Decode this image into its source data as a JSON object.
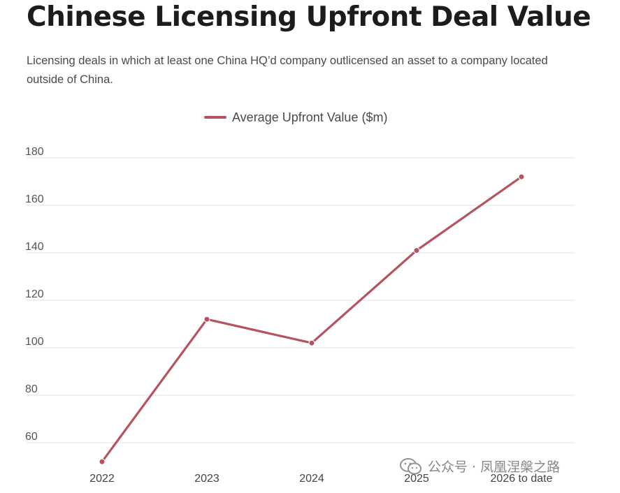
{
  "title": "Chinese Licensing Upfront Deal Value",
  "subtitle": "Licensing deals in which at least one China HQ’d company outlicensed an asset to a company located outside of China.",
  "watermark": "公众号 · 凤凰涅槃之路",
  "colors": {
    "series": "#b5535f",
    "grid": "#e3e3e3"
  },
  "chart_data": {
    "type": "line",
    "title": "Chinese Licensing Upfront Deal Value",
    "xlabel": "",
    "ylabel": "",
    "categories": [
      "2022",
      "2023",
      "2024",
      "2025",
      "2026 to date"
    ],
    "series": [
      {
        "name": "Average Upfront Value ($m)",
        "values": [
          52,
          112,
          102,
          141,
          172
        ]
      }
    ],
    "yticks": [
      60,
      80,
      100,
      120,
      140,
      160,
      180
    ],
    "ylim": [
      52,
      183
    ],
    "grid": true,
    "legend": "top-center"
  }
}
